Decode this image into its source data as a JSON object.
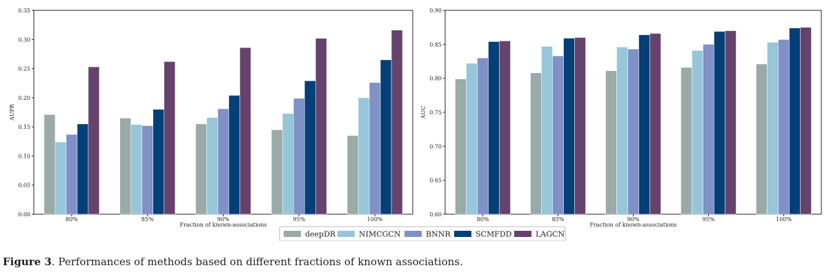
{
  "chart_data": [
    {
      "type": "bar",
      "categories": [
        "80%",
        "85%",
        "90%",
        "95%",
        "100%"
      ],
      "series": [
        {
          "name": "deepDR",
          "values": [
            0.171,
            0.165,
            0.155,
            0.145,
            0.135
          ]
        },
        {
          "name": "NIMCGCN",
          "values": [
            0.124,
            0.154,
            0.166,
            0.173,
            0.2
          ]
        },
        {
          "name": "BNNR",
          "values": [
            0.137,
            0.152,
            0.181,
            0.199,
            0.226
          ]
        },
        {
          "name": "SCMFDD",
          "values": [
            0.155,
            0.18,
            0.204,
            0.229,
            0.265
          ]
        },
        {
          "name": "LAGCN",
          "values": [
            0.253,
            0.262,
            0.286,
            0.302,
            0.316
          ]
        }
      ],
      "xlabel": "Fraction of known-associations",
      "ylabel": "AUPR",
      "ylim": [
        0,
        0.35
      ],
      "yticks": [
        "0.00",
        "0.05",
        "0.10",
        "0.15",
        "0.20",
        "0.25",
        "0.30",
        "0.35"
      ],
      "grid": false
    },
    {
      "type": "bar",
      "categories": [
        "80%",
        "85%",
        "90%",
        "95%",
        "100%"
      ],
      "series": [
        {
          "name": "deepDR",
          "values": [
            0.799,
            0.808,
            0.811,
            0.816,
            0.821
          ]
        },
        {
          "name": "NIMCGCN",
          "values": [
            0.822,
            0.847,
            0.846,
            0.841,
            0.853
          ]
        },
        {
          "name": "BNNR",
          "values": [
            0.83,
            0.833,
            0.843,
            0.85,
            0.857
          ]
        },
        {
          "name": "SCMFDD",
          "values": [
            0.854,
            0.859,
            0.864,
            0.869,
            0.874
          ]
        },
        {
          "name": "LAGCN",
          "values": [
            0.855,
            0.86,
            0.866,
            0.87,
            0.875
          ]
        }
      ],
      "xlabel": "Fraction of known-associations",
      "ylabel": "AUC",
      "ylim": [
        0.6,
        0.9
      ],
      "yticks": [
        "0.60",
        "0.65",
        "0.70",
        "0.75",
        "0.80",
        "0.85",
        "0.90"
      ],
      "grid": false
    }
  ],
  "legend": {
    "placement": "bottom-center",
    "items": [
      "deepDR",
      "NIMCGCN",
      "BNNR",
      "SCMFDD",
      "LAGCN"
    ]
  },
  "colors": {
    "deepDR": "#9aaaa8",
    "NIMCGCN": "#97c6da",
    "BNNR": "#7f91c6",
    "SCMFDD": "#053f78",
    "LAGCN": "#66436d"
  },
  "caption": {
    "label": "Figure 3",
    "text": ".  Performances of methods based on different fractions of known associations."
  }
}
